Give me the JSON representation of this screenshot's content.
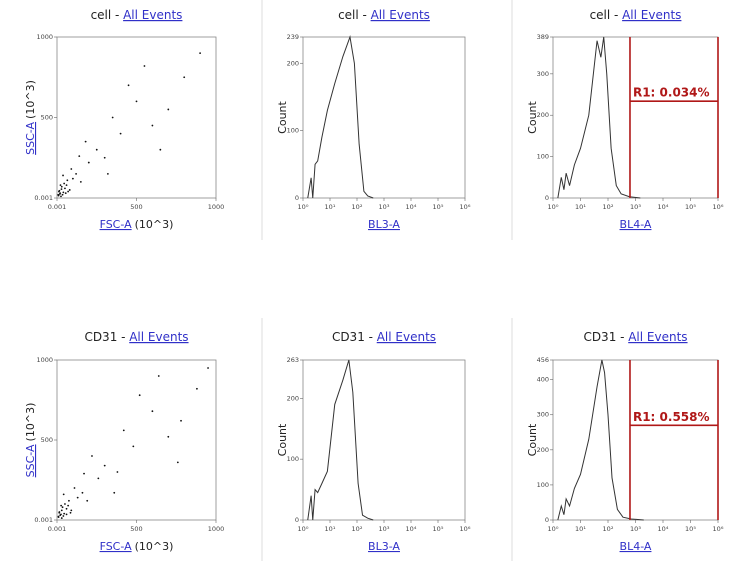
{
  "chart_data": [
    {
      "type": "scatter",
      "title": "cell -",
      "title_link": "All Events",
      "x_label_link": "FSC-A",
      "x_label": "(10^3)",
      "y_label_link": "SSC-A",
      "y_label": "(10^3)",
      "xlim": [
        0.001,
        1000
      ],
      "ylim": [
        0.001,
        1000
      ],
      "xticks": [
        0.001,
        500,
        1000
      ],
      "yticks": [
        0.001,
        500,
        1000
      ],
      "color": "#111111",
      "x": [
        20,
        35,
        50,
        15,
        60,
        80,
        100,
        45,
        120,
        150,
        200,
        30,
        70,
        250,
        300,
        180,
        90,
        400,
        350,
        500,
        600,
        450,
        700,
        800,
        550,
        650,
        900,
        25,
        140,
        320,
        10,
        12,
        18,
        8,
        40,
        28,
        22,
        55,
        65,
        38
      ],
      "values": [
        30,
        20,
        60,
        45,
        80,
        50,
        120,
        90,
        150,
        100,
        220,
        70,
        40,
        300,
        250,
        350,
        180,
        400,
        500,
        600,
        450,
        700,
        550,
        750,
        820,
        300,
        900,
        10,
        260,
        150,
        15,
        40,
        25,
        20,
        35,
        55,
        80,
        30,
        110,
        140
      ]
    },
    {
      "type": "line",
      "log_x": true,
      "title": "cell -",
      "title_link": "All Events",
      "x_label_link": "BL3-A",
      "y_label": "Count",
      "xlim": [
        1,
        1000000
      ],
      "ylim": [
        0,
        239
      ],
      "xticks": [
        {
          "value": 1,
          "label": "10⁰"
        },
        {
          "value": 10,
          "label": "10¹"
        },
        {
          "value": 100,
          "label": "10²"
        },
        {
          "value": 1000,
          "label": "10³"
        },
        {
          "value": 10000,
          "label": "10⁴"
        },
        {
          "value": 100000,
          "label": "10⁵"
        },
        {
          "value": 1000000,
          "label": "10⁶"
        }
      ],
      "yticks": [
        0,
        100,
        200,
        239
      ],
      "color": "#333333",
      "x": [
        1.5,
        2,
        2.3,
        2.8,
        3.5,
        5,
        8,
        15,
        30,
        55,
        80,
        120,
        180,
        250,
        400
      ],
      "values": [
        0,
        30,
        0,
        50,
        55,
        90,
        130,
        170,
        210,
        239,
        200,
        80,
        10,
        3,
        0
      ]
    },
    {
      "type": "line",
      "log_x": true,
      "title": "cell -",
      "title_link": "All Events",
      "x_label_link": "BL4-A",
      "y_label": "Count",
      "xlim": [
        1,
        1000000
      ],
      "ylim": [
        0,
        389
      ],
      "xticks": [
        {
          "value": 1,
          "label": "10⁰"
        },
        {
          "value": 10,
          "label": "10¹"
        },
        {
          "value": 100,
          "label": "10²"
        },
        {
          "value": 1000,
          "label": "10³"
        },
        {
          "value": 10000,
          "label": "10⁴"
        },
        {
          "value": 100000,
          "label": "10⁵"
        },
        {
          "value": 1000000,
          "label": "10⁶"
        }
      ],
      "yticks": [
        0,
        100,
        200,
        300,
        389
      ],
      "color": "#333333",
      "x": [
        1.5,
        2,
        2.5,
        3,
        4,
        6,
        10,
        20,
        40,
        55,
        70,
        90,
        130,
        200,
        300,
        600,
        1500
      ],
      "values": [
        0,
        50,
        20,
        60,
        30,
        80,
        120,
        200,
        380,
        340,
        389,
        300,
        120,
        30,
        10,
        3,
        0
      ],
      "gate": {
        "label": "R1: 0.034%",
        "x": [
          630,
          1000000
        ],
        "y": 234,
        "color": "#b01818"
      }
    },
    {
      "type": "scatter",
      "title": "CD31 -",
      "title_link": "All Events",
      "x_label_link": "FSC-A",
      "x_label": "(10^3)",
      "y_label_link": "SSC-A",
      "y_label": "(10^3)",
      "xlim": [
        0.001,
        1000
      ],
      "ylim": [
        0.001,
        1000
      ],
      "xticks": [
        0.001,
        500,
        1000
      ],
      "yticks": [
        0.001,
        500,
        1000
      ],
      "color": "#111111",
      "x": [
        25,
        40,
        60,
        15,
        70,
        90,
        130,
        50,
        160,
        190,
        260,
        35,
        85,
        300,
        380,
        220,
        110,
        480,
        420,
        600,
        700,
        520,
        780,
        880,
        640,
        760,
        950,
        30,
        170,
        360,
        10,
        14,
        20,
        9,
        45,
        30,
        26,
        60,
        75,
        42
      ],
      "values": [
        35,
        25,
        70,
        50,
        90,
        60,
        140,
        100,
        170,
        120,
        260,
        80,
        45,
        340,
        300,
        400,
        200,
        460,
        560,
        680,
        520,
        780,
        620,
        820,
        900,
        360,
        950,
        12,
        290,
        170,
        18,
        45,
        30,
        22,
        40,
        60,
        90,
        35,
        120,
        160
      ]
    },
    {
      "type": "line",
      "log_x": true,
      "title": "CD31 -",
      "title_link": "All Events",
      "x_label_link": "BL3-A",
      "y_label": "Count",
      "xlim": [
        1,
        1000000
      ],
      "ylim": [
        0,
        263
      ],
      "xticks": [
        {
          "value": 1,
          "label": "10⁰"
        },
        {
          "value": 10,
          "label": "10¹"
        },
        {
          "value": 100,
          "label": "10²"
        },
        {
          "value": 1000,
          "label": "10³"
        },
        {
          "value": 10000,
          "label": "10⁴"
        },
        {
          "value": 100000,
          "label": "10⁵"
        },
        {
          "value": 1000000,
          "label": "10⁶"
        }
      ],
      "yticks": [
        0,
        100,
        200,
        263
      ],
      "color": "#333333",
      "x": [
        1.5,
        2,
        2.3,
        2.8,
        3.5,
        5,
        8,
        15,
        30,
        50,
        70,
        110,
        160,
        250,
        400
      ],
      "values": [
        0,
        40,
        0,
        50,
        45,
        60,
        80,
        190,
        230,
        263,
        210,
        60,
        8,
        3,
        0
      ]
    },
    {
      "type": "line",
      "log_x": true,
      "title": "CD31 -",
      "title_link": "All Events",
      "x_label_link": "BL4-A",
      "y_label": "Count",
      "xlim": [
        1,
        1000000
      ],
      "ylim": [
        0,
        456
      ],
      "xticks": [
        {
          "value": 1,
          "label": "10⁰"
        },
        {
          "value": 10,
          "label": "10¹"
        },
        {
          "value": 100,
          "label": "10²"
        },
        {
          "value": 1000,
          "label": "10³"
        },
        {
          "value": 10000,
          "label": "10⁴"
        },
        {
          "value": 100000,
          "label": "10⁵"
        },
        {
          "value": 1000000,
          "label": "10⁶"
        }
      ],
      "yticks": [
        0,
        100,
        200,
        300,
        400,
        456
      ],
      "color": "#333333",
      "x": [
        1.5,
        2,
        2.5,
        3,
        4,
        6,
        10,
        20,
        40,
        60,
        75,
        100,
        140,
        220,
        350,
        700,
        2000
      ],
      "values": [
        0,
        40,
        15,
        60,
        40,
        90,
        130,
        230,
        380,
        456,
        420,
        300,
        120,
        30,
        8,
        3,
        0
      ],
      "gate": {
        "label": "R1: 0.558%",
        "x": [
          630,
          1000000
        ],
        "y": 270,
        "color": "#b01818"
      }
    }
  ]
}
